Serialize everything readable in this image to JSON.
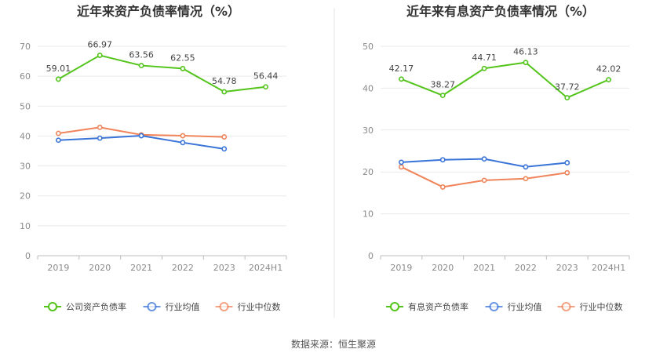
{
  "footer": {
    "source": "数据来源：恒生聚源"
  },
  "chart_data": [
    {
      "type": "line",
      "title": "近年来资产负债率情况（%）",
      "categories": [
        "2019",
        "2020",
        "2021",
        "2022",
        "2023",
        "2024H1"
      ],
      "ylim": [
        0,
        70
      ],
      "yticks": [
        0,
        10,
        20,
        30,
        40,
        50,
        60,
        70
      ],
      "grid": true,
      "legend_position": "bottom",
      "series": [
        {
          "name": "公司资产负债率",
          "color": "#52c41a",
          "values": [
            59.01,
            66.97,
            63.56,
            62.55,
            54.78,
            56.44
          ],
          "labels": [
            "59.01",
            "66.97",
            "63.56",
            "62.55",
            "54.78",
            "56.44"
          ]
        },
        {
          "name": "行业均值",
          "color": "#3a74d8",
          "values": [
            38.6,
            39.3,
            40.1,
            37.8,
            35.7,
            null
          ]
        },
        {
          "name": "行业中位数",
          "color": "#f0845a",
          "values": [
            40.9,
            42.9,
            40.4,
            40.1,
            39.7,
            null
          ]
        }
      ]
    },
    {
      "type": "line",
      "title": "近年来有息资产负债率情况（%）",
      "categories": [
        "2019",
        "2020",
        "2021",
        "2022",
        "2023",
        "2024H1"
      ],
      "ylim": [
        0,
        50
      ],
      "yticks": [
        0,
        10,
        20,
        30,
        40,
        50
      ],
      "grid": true,
      "legend_position": "bottom",
      "series": [
        {
          "name": "有息资产负债率",
          "color": "#52c41a",
          "values": [
            42.17,
            38.27,
            44.71,
            46.13,
            37.72,
            42.02
          ],
          "labels": [
            "42.17",
            "38.27",
            "44.71",
            "46.13",
            "37.72",
            "42.02"
          ]
        },
        {
          "name": "行业均值",
          "color": "#3a74d8",
          "values": [
            22.3,
            22.9,
            23.1,
            21.2,
            22.2,
            null
          ]
        },
        {
          "name": "行业中位数",
          "color": "#f0845a",
          "values": [
            21.2,
            16.4,
            18.0,
            18.4,
            19.8,
            null
          ]
        }
      ]
    }
  ]
}
